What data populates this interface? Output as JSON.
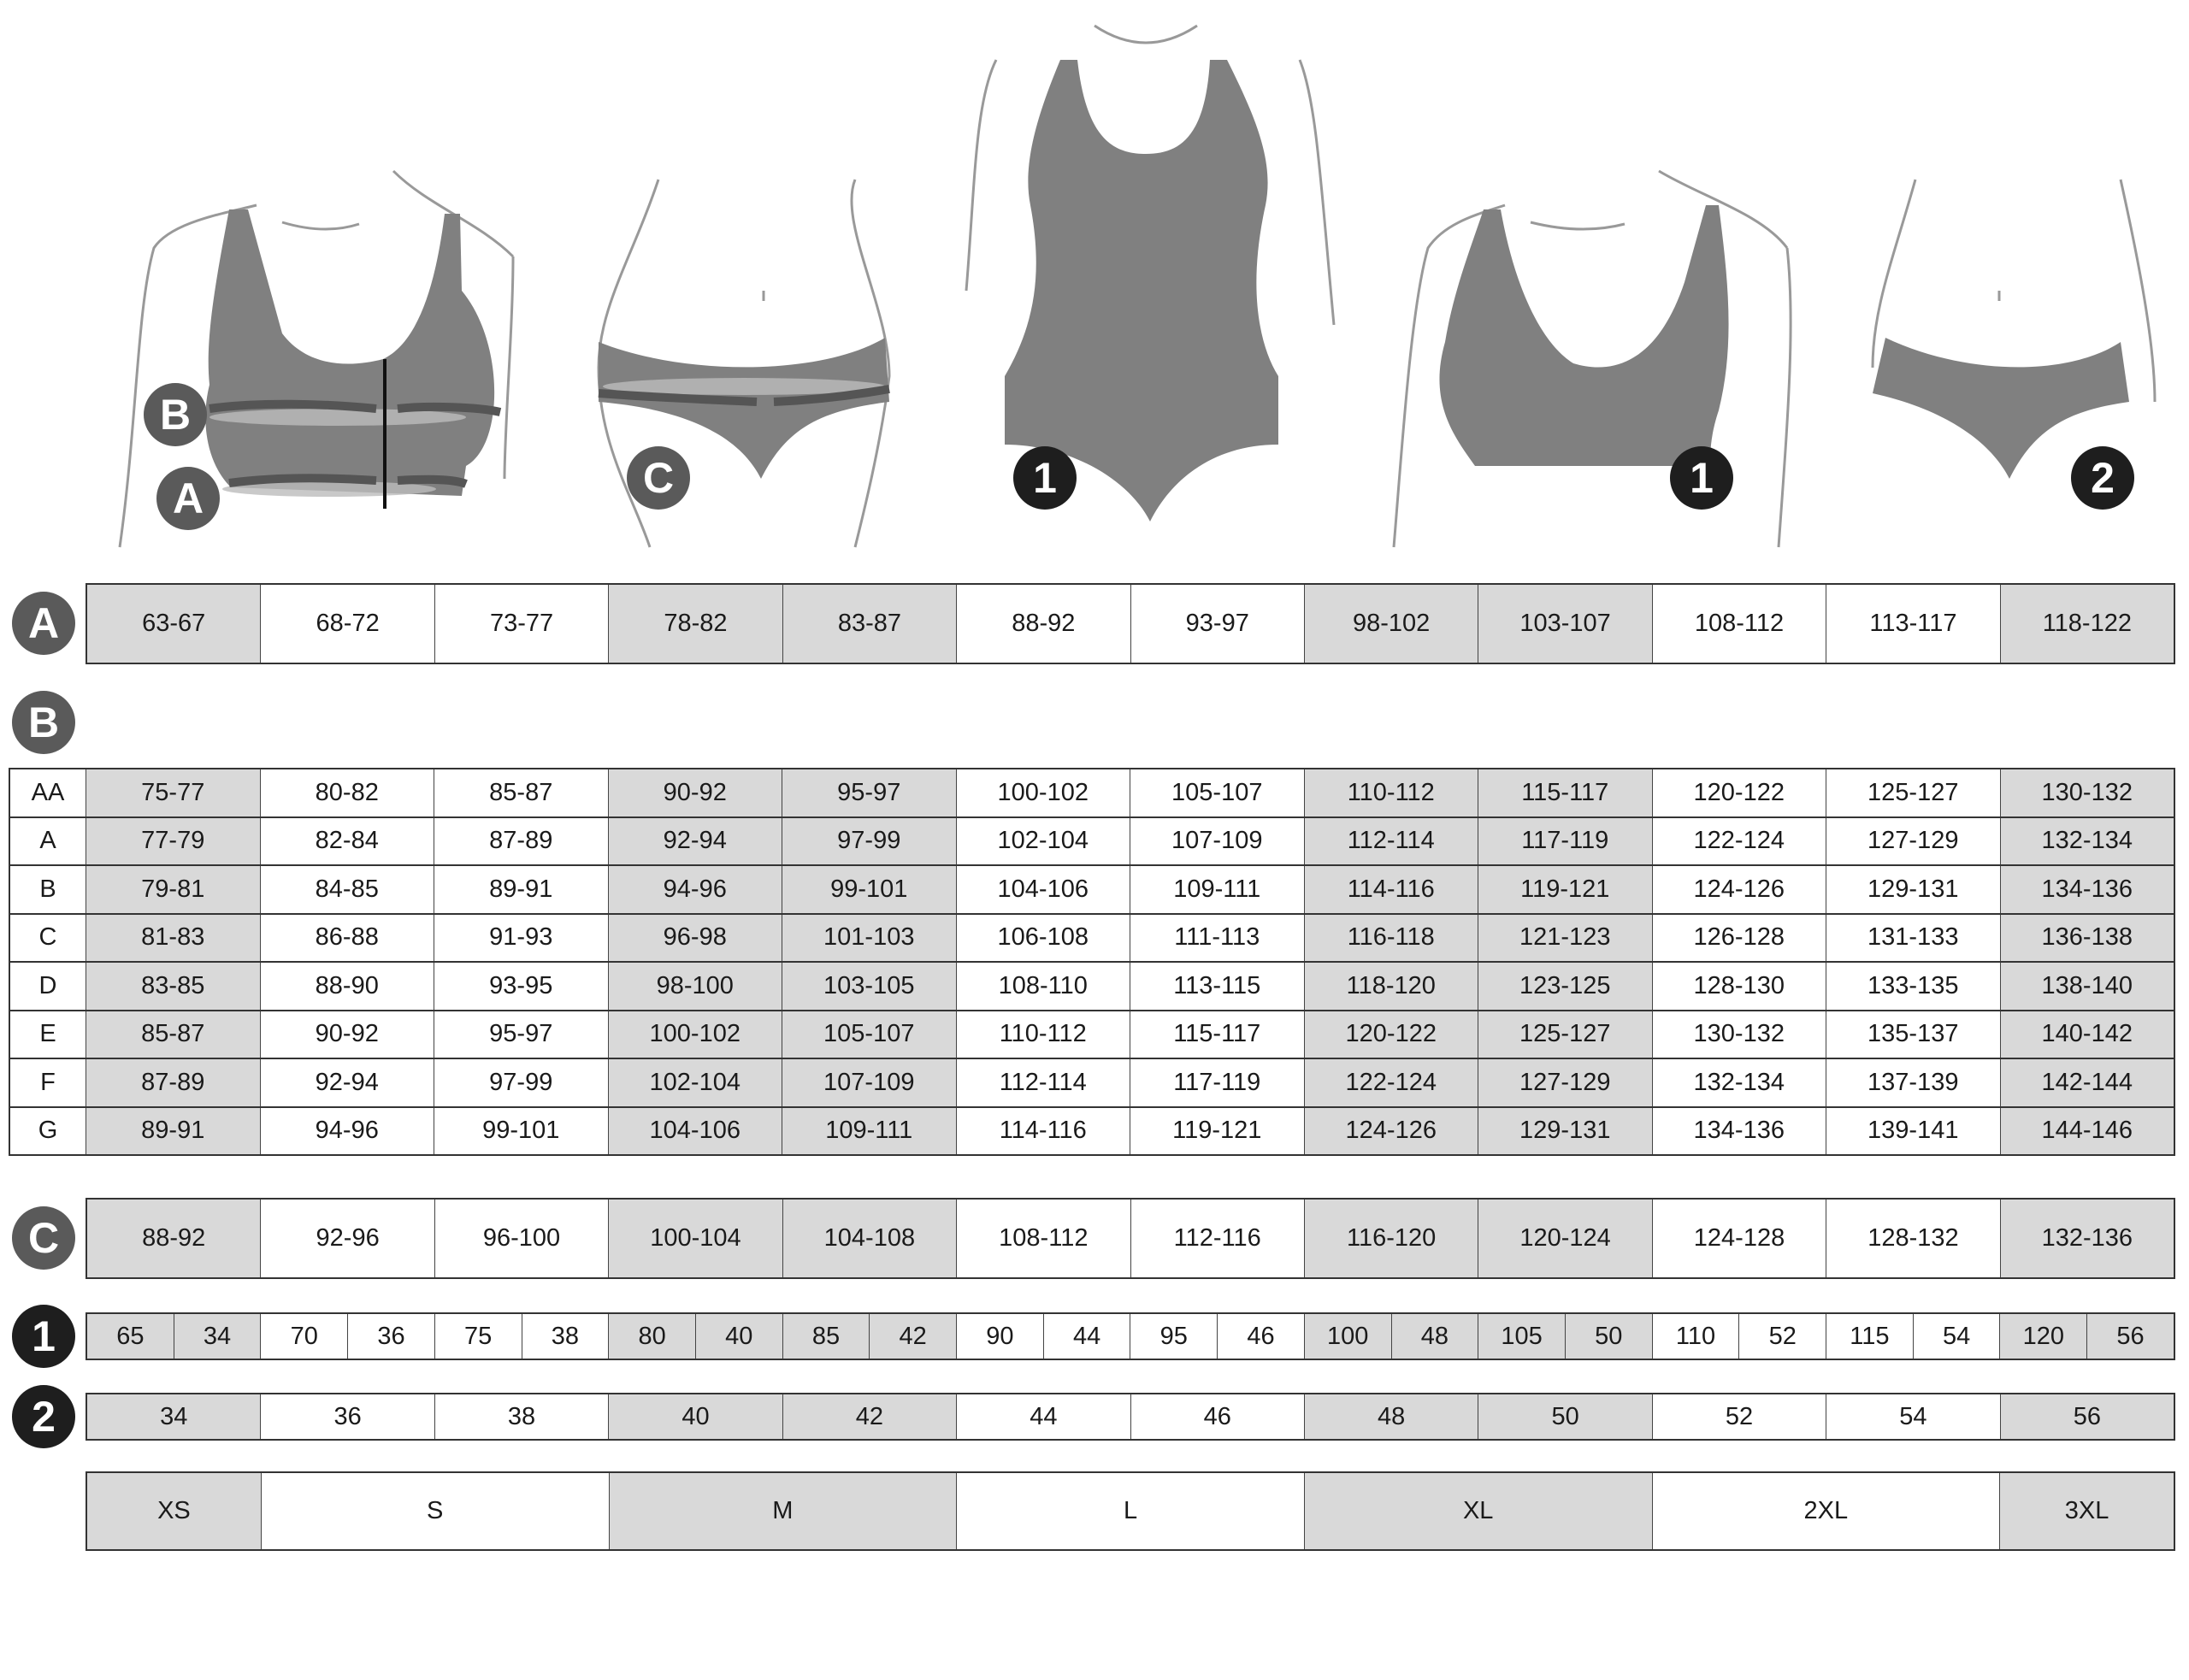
{
  "colors": {
    "shaded_cell": "#d9d9d9",
    "garment": "#808080",
    "badge_gray": "#5a5a5a",
    "badge_dark": "#1e1e1e"
  },
  "shaded_columns": [
    0,
    3,
    4,
    7,
    8,
    11
  ],
  "figure_badges": {
    "bra_b": "B",
    "bra_a": "A",
    "brief_c": "C",
    "bodysuit": "1",
    "bra_top": "1",
    "brief": "2"
  },
  "section_a": {
    "label": "A",
    "values": [
      "63-67",
      "68-72",
      "73-77",
      "78-82",
      "83-87",
      "88-92",
      "93-97",
      "98-102",
      "103-107",
      "108-112",
      "113-117",
      "118-122"
    ]
  },
  "section_b": {
    "label": "B",
    "rows": [
      {
        "cup": "AA",
        "values": [
          "75-77",
          "80-82",
          "85-87",
          "90-92",
          "95-97",
          "100-102",
          "105-107",
          "110-112",
          "115-117",
          "120-122",
          "125-127",
          "130-132"
        ]
      },
      {
        "cup": "A",
        "values": [
          "77-79",
          "82-84",
          "87-89",
          "92-94",
          "97-99",
          "102-104",
          "107-109",
          "112-114",
          "117-119",
          "122-124",
          "127-129",
          "132-134"
        ]
      },
      {
        "cup": "B",
        "values": [
          "79-81",
          "84-85",
          "89-91",
          "94-96",
          "99-101",
          "104-106",
          "109-111",
          "114-116",
          "119-121",
          "124-126",
          "129-131",
          "134-136"
        ]
      },
      {
        "cup": "C",
        "values": [
          "81-83",
          "86-88",
          "91-93",
          "96-98",
          "101-103",
          "106-108",
          "111-113",
          "116-118",
          "121-123",
          "126-128",
          "131-133",
          "136-138"
        ]
      },
      {
        "cup": "D",
        "values": [
          "83-85",
          "88-90",
          "93-95",
          "98-100",
          "103-105",
          "108-110",
          "113-115",
          "118-120",
          "123-125",
          "128-130",
          "133-135",
          "138-140"
        ]
      },
      {
        "cup": "E",
        "values": [
          "85-87",
          "90-92",
          "95-97",
          "100-102",
          "105-107",
          "110-112",
          "115-117",
          "120-122",
          "125-127",
          "130-132",
          "135-137",
          "140-142"
        ]
      },
      {
        "cup": "F",
        "values": [
          "87-89",
          "92-94",
          "97-99",
          "102-104",
          "107-109",
          "112-114",
          "117-119",
          "122-124",
          "127-129",
          "132-134",
          "137-139",
          "142-144"
        ]
      },
      {
        "cup": "G",
        "values": [
          "89-91",
          "94-96",
          "99-101",
          "104-106",
          "109-111",
          "114-116",
          "119-121",
          "124-126",
          "129-131",
          "134-136",
          "139-141",
          "144-146"
        ]
      }
    ]
  },
  "section_c": {
    "label": "C",
    "values": [
      "88-92",
      "92-96",
      "96-100",
      "100-104",
      "104-108",
      "108-112",
      "112-116",
      "116-120",
      "120-124",
      "124-128",
      "128-132",
      "132-136"
    ]
  },
  "section_1": {
    "label": "1",
    "pairs": [
      [
        "65",
        "34"
      ],
      [
        "70",
        "36"
      ],
      [
        "75",
        "38"
      ],
      [
        "80",
        "40"
      ],
      [
        "85",
        "42"
      ],
      [
        "90",
        "44"
      ],
      [
        "95",
        "46"
      ],
      [
        "100",
        "48"
      ],
      [
        "105",
        "50"
      ],
      [
        "110",
        "52"
      ],
      [
        "115",
        "54"
      ],
      [
        "120",
        "56"
      ]
    ]
  },
  "section_2": {
    "label": "2",
    "values": [
      "34",
      "36",
      "38",
      "40",
      "42",
      "44",
      "46",
      "48",
      "50",
      "52",
      "54",
      "56"
    ]
  },
  "sizes": [
    {
      "label": "XS",
      "span": 1,
      "shaded": true
    },
    {
      "label": "S",
      "span": 2,
      "shaded": false
    },
    {
      "label": "M",
      "span": 2,
      "shaded": true
    },
    {
      "label": "L",
      "span": 2,
      "shaded": false
    },
    {
      "label": "XL",
      "span": 2,
      "shaded": true
    },
    {
      "label": "2XL",
      "span": 2,
      "shaded": false
    },
    {
      "label": "3XL",
      "span": 1,
      "shaded": true
    }
  ]
}
